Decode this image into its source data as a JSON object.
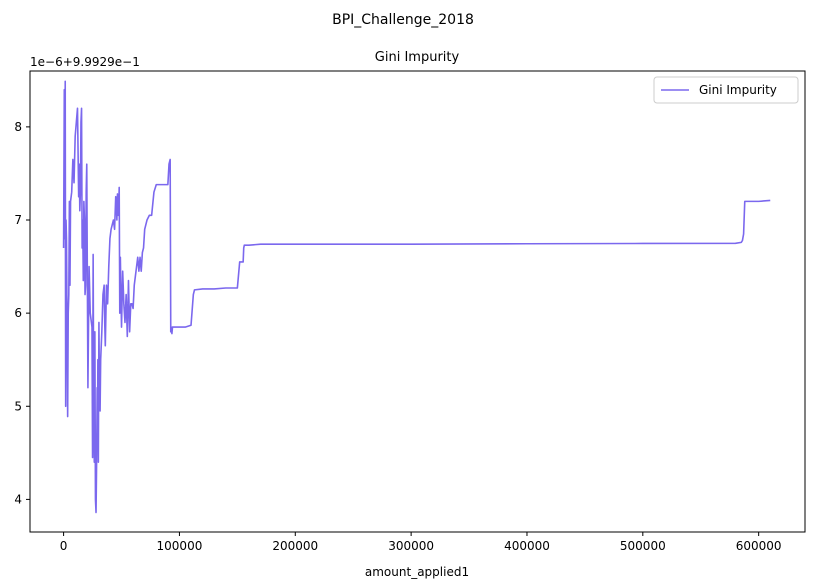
{
  "figure": {
    "suptitle": "BPI_Challenge_2018"
  },
  "chart_data": {
    "type": "line",
    "title": "Gini Impurity",
    "xlabel": "amount_applied1",
    "ylabel": "",
    "y_offset_text": "1e−6+9.9929e−1",
    "xlim": [
      -29000,
      640000
    ],
    "ylim": [
      3.65,
      8.6
    ],
    "x_ticks": [
      0,
      100000,
      200000,
      300000,
      400000,
      500000,
      600000
    ],
    "x_tick_labels": [
      "0",
      "100000",
      "200000",
      "300000",
      "400000",
      "500000",
      "600000"
    ],
    "y_ticks": [
      4,
      5,
      6,
      7,
      8
    ],
    "y_tick_labels": [
      "4",
      "5",
      "6",
      "7",
      "8"
    ],
    "grid": false,
    "legend": {
      "position": "top-right"
    },
    "series": [
      {
        "name": "Gini Impurity",
        "color": "#7b68ee",
        "x": [
          0,
          600,
          1100,
          1400,
          1800,
          2100,
          2500,
          3000,
          3500,
          4000,
          4500,
          5000,
          5500,
          6000,
          7000,
          8000,
          9000,
          10000,
          11000,
          12000,
          13000,
          13500,
          14000,
          14500,
          15000,
          15500,
          16000,
          16500,
          17000,
          17500,
          18000,
          18500,
          19000,
          19500,
          20000,
          21000,
          22000,
          23000,
          24000,
          24500,
          25000,
          25500,
          26000,
          26500,
          27000,
          27500,
          28000,
          28500,
          29000,
          29300,
          29600,
          30000,
          30500,
          31000,
          31500,
          32000,
          33000,
          33500,
          34000,
          35000,
          35500,
          36000,
          37000,
          38000,
          39000,
          40000,
          41000,
          42000,
          43000,
          44000,
          45000,
          45500,
          46000,
          46500,
          47000,
          47500,
          48000,
          48500,
          49000,
          49500,
          50000,
          51000,
          52000,
          53000,
          54000,
          55000,
          56000,
          57000,
          58000,
          59000,
          60000,
          61000,
          62000,
          63000,
          64000,
          65000,
          66000,
          67000,
          68000,
          69000,
          70000,
          72000,
          74000,
          76000,
          78000,
          80000,
          82000,
          85000,
          88000,
          90000,
          91000,
          92000,
          92500,
          93000,
          93500,
          94000,
          100000,
          105000,
          110000,
          112000,
          113000,
          120000,
          130000,
          140000,
          150000,
          152000,
          153000,
          155000,
          155500,
          156000,
          160000,
          170000,
          180000,
          200000,
          300000,
          400000,
          500000,
          580000,
          585000,
          586000,
          587000,
          588000,
          600000,
          610000
        ],
        "y": [
          6.7,
          8.4,
          6.8,
          8.49,
          5.0,
          7.0,
          6.8,
          5.9,
          4.89,
          6.0,
          6.2,
          7.2,
          6.3,
          7.2,
          7.3,
          7.65,
          7.4,
          7.9,
          8.05,
          8.2,
          7.25,
          7.6,
          7.1,
          7.3,
          8.05,
          8.2,
          6.7,
          7.0,
          6.35,
          7.2,
          7.0,
          6.2,
          6.3,
          7.3,
          7.6,
          5.2,
          6.5,
          6.0,
          5.9,
          5.85,
          4.45,
          6.63,
          5.0,
          4.4,
          5.8,
          4.0,
          3.86,
          4.4,
          5.2,
          4.8,
          5.5,
          4.4,
          5.9,
          5.0,
          4.95,
          5.5,
          5.8,
          6.0,
          6.2,
          6.3,
          5.9,
          5.65,
          6.3,
          6.1,
          6.5,
          6.8,
          6.9,
          6.95,
          7.0,
          6.9,
          7.25,
          7.2,
          7.0,
          7.28,
          7.05,
          7.1,
          7.35,
          6.0,
          6.6,
          6.2,
          5.85,
          6.45,
          6.1,
          5.9,
          6.2,
          5.75,
          6.35,
          5.8,
          6.1,
          6.1,
          6.05,
          6.3,
          6.4,
          6.5,
          6.6,
          6.45,
          6.6,
          6.45,
          6.65,
          6.7,
          6.9,
          7.0,
          7.05,
          7.05,
          7.3,
          7.38,
          7.38,
          7.38,
          7.38,
          7.38,
          7.6,
          7.65,
          5.8,
          5.85,
          5.78,
          5.85,
          5.85,
          5.85,
          5.87,
          6.2,
          6.25,
          6.26,
          6.26,
          6.27,
          6.27,
          6.55,
          6.55,
          6.55,
          6.7,
          6.73,
          6.73,
          6.74,
          6.74,
          6.74,
          6.74,
          6.745,
          6.748,
          6.75,
          6.76,
          6.78,
          6.85,
          7.2,
          7.2,
          7.21
        ]
      }
    ]
  }
}
